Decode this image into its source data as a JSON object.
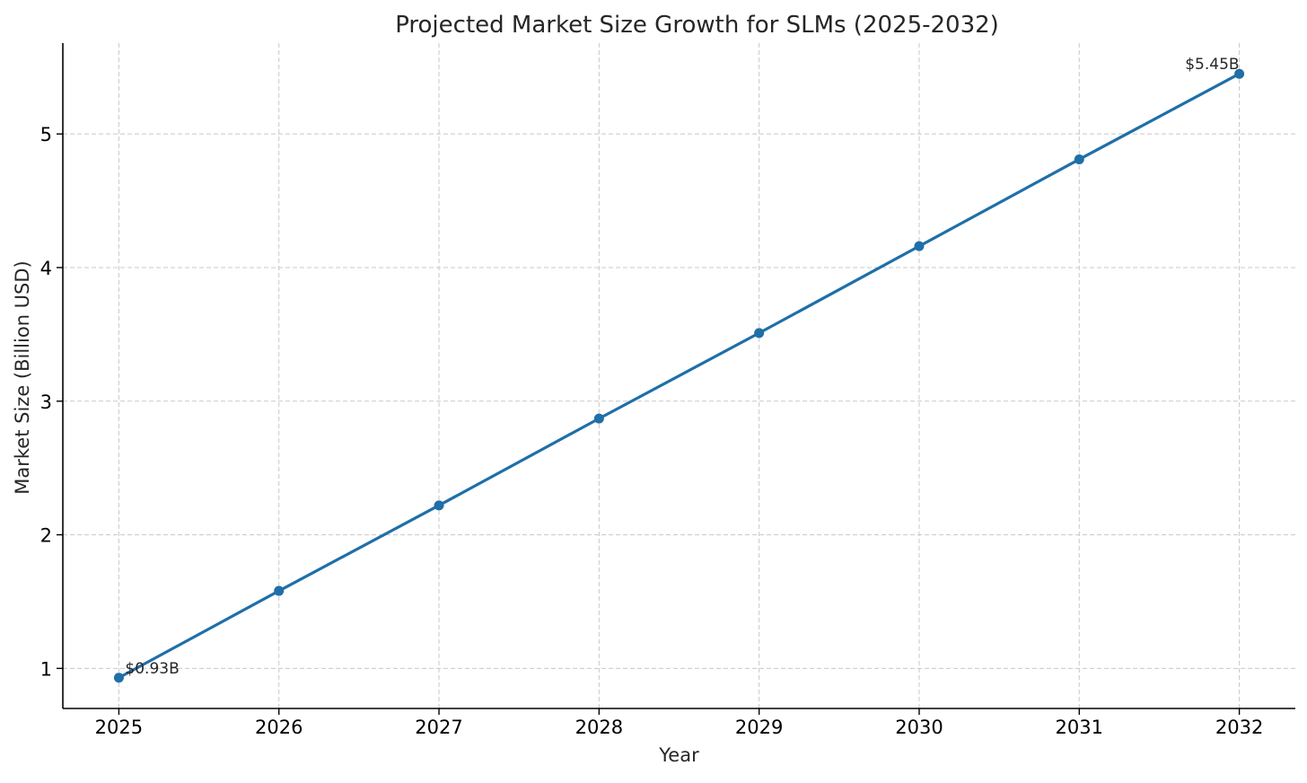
{
  "chart_data": {
    "type": "line",
    "title": "Projected Market Size Growth for SLMs (2025-2032)",
    "xlabel": "Year",
    "ylabel": "Market Size (Billion USD)",
    "x": [
      2025,
      2026,
      2027,
      2028,
      2029,
      2030,
      2031,
      2032
    ],
    "x_tick_labels": [
      "2025",
      "2026",
      "2027",
      "2028",
      "2029",
      "2030",
      "2031",
      "2032"
    ],
    "y_ticks": [
      1,
      2,
      3,
      4,
      5
    ],
    "y_tick_labels": [
      "1",
      "2",
      "3",
      "4",
      "5"
    ],
    "xlim": [
      2024.65,
      2032.35
    ],
    "ylim": [
      0.7,
      5.68
    ],
    "grid": true,
    "series": [
      {
        "values": [
          0.93,
          1.58,
          2.22,
          2.87,
          3.51,
          4.16,
          4.81,
          5.45
        ],
        "color": "#1f6fa8",
        "marker": "circle"
      }
    ],
    "annotations": [
      {
        "point_index": 0,
        "text": "$0.93B",
        "placement": "right"
      },
      {
        "point_index": 7,
        "text": "$5.45B",
        "placement": "above-left"
      }
    ]
  }
}
